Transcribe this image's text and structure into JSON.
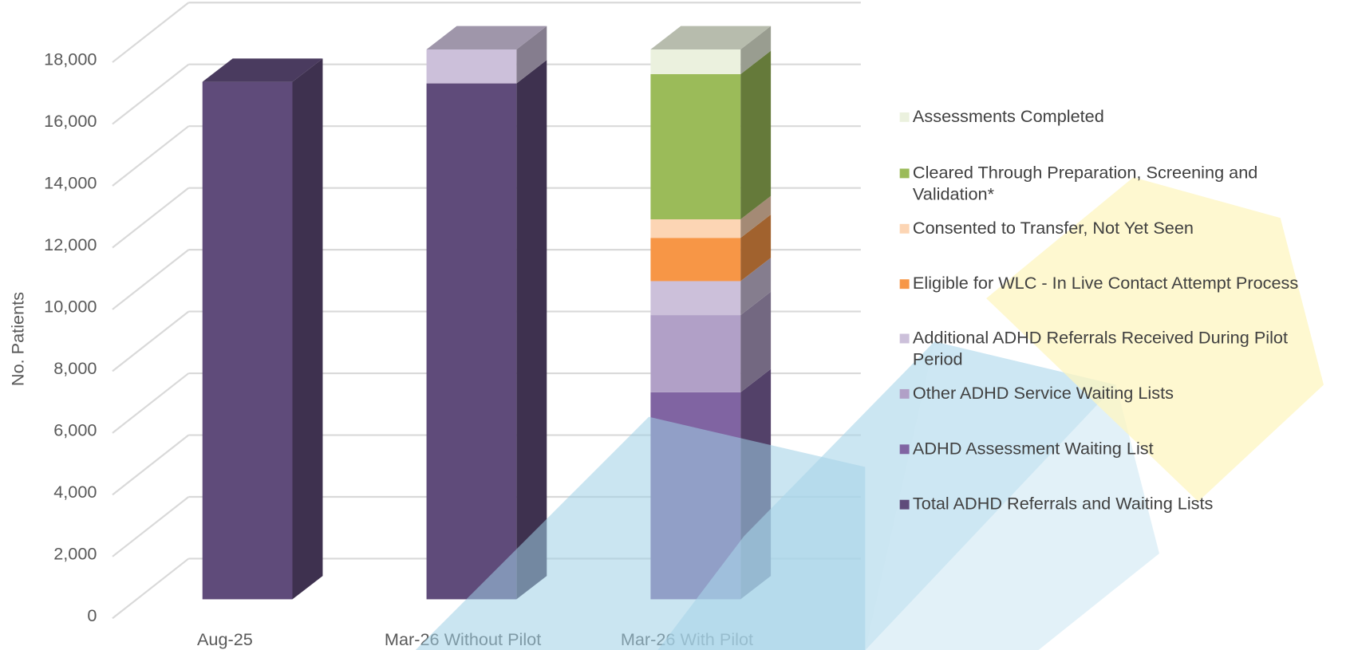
{
  "chart_data": {
    "type": "bar3d_stacked",
    "y_label": "No. Patients",
    "categories": [
      "Aug-25",
      "Mar-26 Without Pilot",
      "Mar-26 With Pilot"
    ],
    "series": [
      {
        "name": "Total ADHD Referrals and Waiting Lists",
        "color": "#5f4b7a",
        "values": [
          16750,
          16700,
          null
        ]
      },
      {
        "name": "ADHD Assessment Waiting List",
        "color": "#8064a2",
        "values": [
          null,
          null,
          6700
        ]
      },
      {
        "name": "Other ADHD Service Waiting Lists",
        "color": "#b1a0c7",
        "values": [
          null,
          null,
          2500
        ]
      },
      {
        "name": "Additional ADHD Referrals Received During Pilot Period",
        "color": "#ccc0da",
        "values": [
          null,
          1100,
          1100
        ]
      },
      {
        "name": "Eligible for WLC - In Live Contact Attempt Process",
        "color": "#f79646",
        "values": [
          null,
          null,
          1400
        ]
      },
      {
        "name": "Consented to Transfer, Not Yet Seen",
        "color": "#fcd5b4",
        "values": [
          null,
          null,
          600
        ]
      },
      {
        "name": "Cleared Through Preparation, Screening and Validation*",
        "color": "#9bbb59",
        "values": [
          null,
          null,
          4700
        ]
      },
      {
        "name": "Assessments Completed",
        "color": "#ebf1de",
        "values": [
          null,
          null,
          800
        ]
      }
    ],
    "ylim": [
      0,
      20000
    ],
    "yticks": [
      0,
      {
        "value": 2000,
        "label": "2,000"
      },
      {
        "value": 4000,
        "label": "4,000"
      },
      {
        "value": 6000,
        "label": "6,000"
      },
      {
        "value": 8000,
        "label": "8,000"
      },
      {
        "value": 10000,
        "label": "10,000"
      },
      {
        "value": 12000,
        "label": "12,000"
      },
      {
        "value": 14000,
        "label": "14,000"
      },
      {
        "value": 16000,
        "label": "16,000"
      },
      {
        "value": 18000,
        "label": "18,000"
      }
    ],
    "grid": true,
    "legend": "right"
  }
}
